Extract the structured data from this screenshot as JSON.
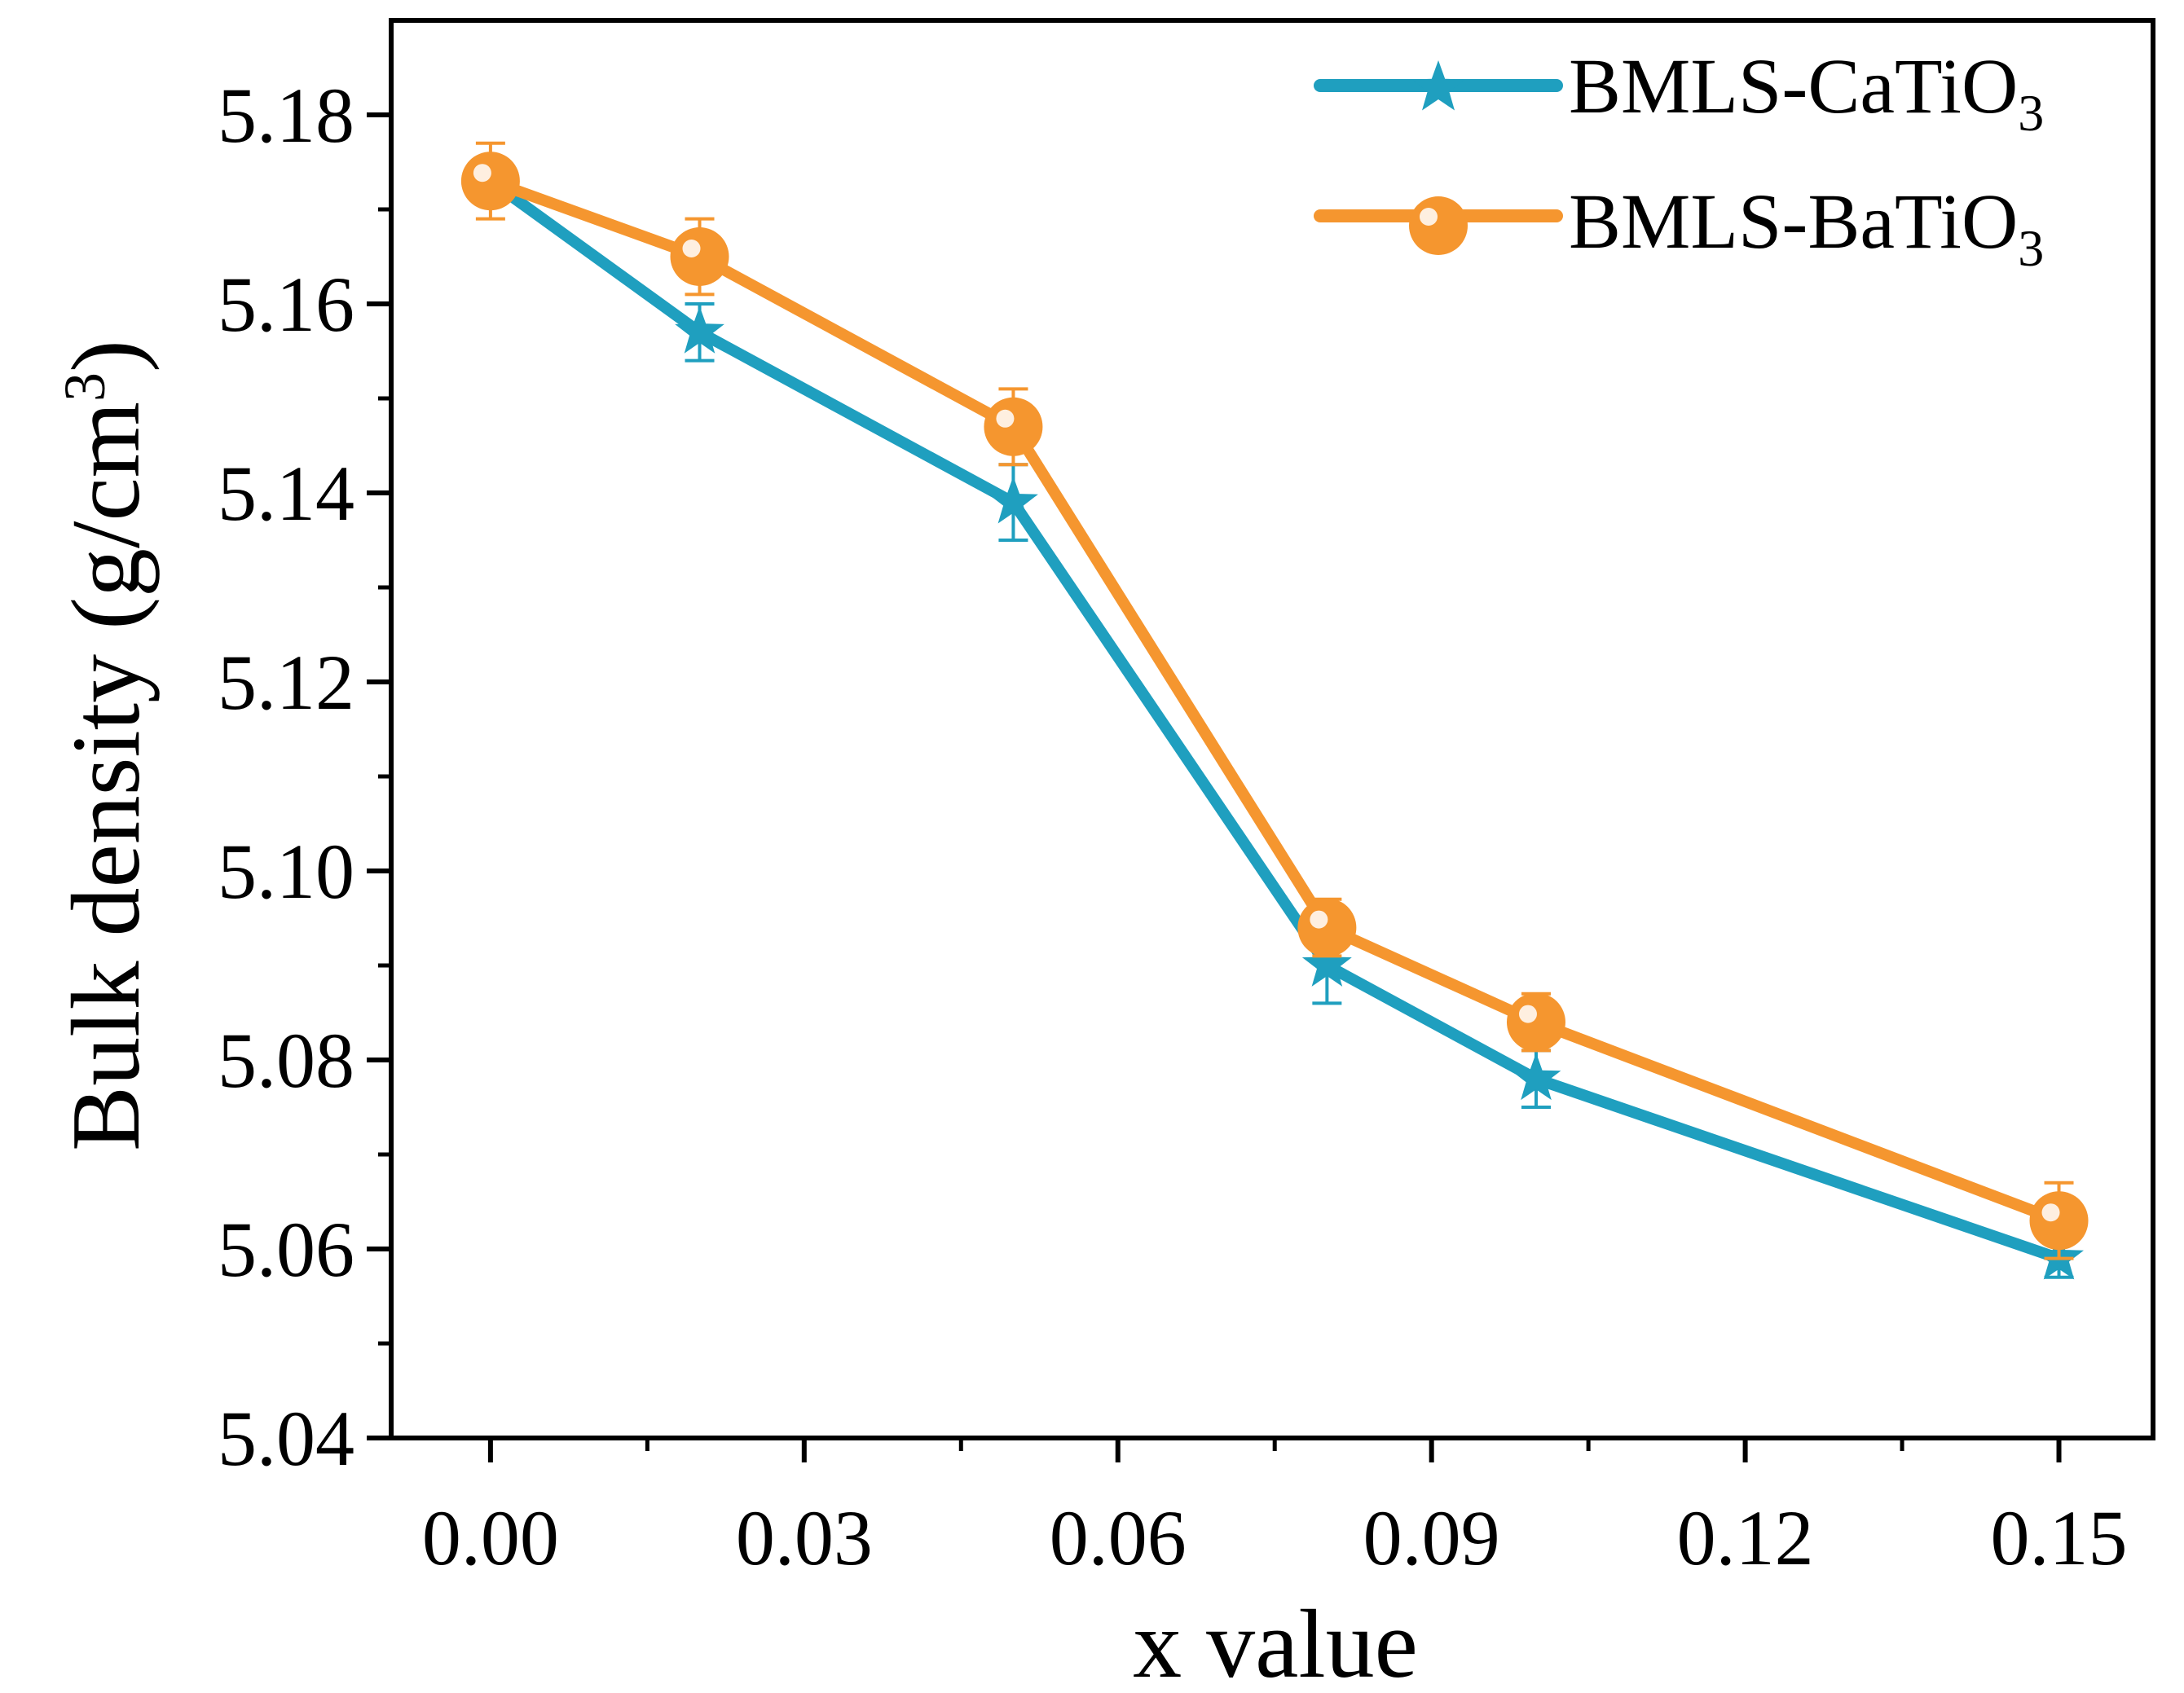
{
  "chart_data": {
    "type": "line",
    "title": "",
    "xlabel": "x value",
    "ylabel": "Bulk density (g/cm",
    "ylabel_superscript": "3",
    "ylabel_close": ")",
    "xlim": [
      -0.0095,
      0.159
    ],
    "ylim": [
      5.04,
      5.19
    ],
    "x_ticks": [
      0.0,
      0.03,
      0.06,
      0.09,
      0.12,
      0.15
    ],
    "x_tick_labels": [
      "0.00",
      "0.03",
      "0.06",
      "0.09",
      "0.12",
      "0.15"
    ],
    "y_ticks": [
      5.04,
      5.06,
      5.08,
      5.1,
      5.12,
      5.14,
      5.16,
      5.18
    ],
    "y_tick_labels": [
      "5.04",
      "5.06",
      "5.08",
      "5.10",
      "5.12",
      "5.14",
      "5.16",
      "5.18"
    ],
    "grid": false,
    "legend_position": "top-right",
    "series": [
      {
        "name": "BMLS-CaTiO",
        "name_subscript": "3",
        "color": "#1f9fbf",
        "marker": "star",
        "x": [
          0.0,
          0.02,
          0.05,
          0.08,
          0.1,
          0.15
        ],
        "values": [
          5.173,
          5.157,
          5.139,
          5.09,
          5.078,
          5.059
        ],
        "errors": [
          0.002,
          0.003,
          0.004,
          0.004,
          0.003,
          0.002
        ]
      },
      {
        "name": "BMLS-BaTiO",
        "name_subscript": "3",
        "color": "#f5962f",
        "marker": "circle",
        "x": [
          0.0,
          0.02,
          0.05,
          0.08,
          0.1,
          0.15
        ],
        "values": [
          5.173,
          5.165,
          5.147,
          5.094,
          5.084,
          5.063
        ],
        "errors": [
          0.004,
          0.004,
          0.004,
          0.003,
          0.003,
          0.004
        ]
      }
    ]
  }
}
